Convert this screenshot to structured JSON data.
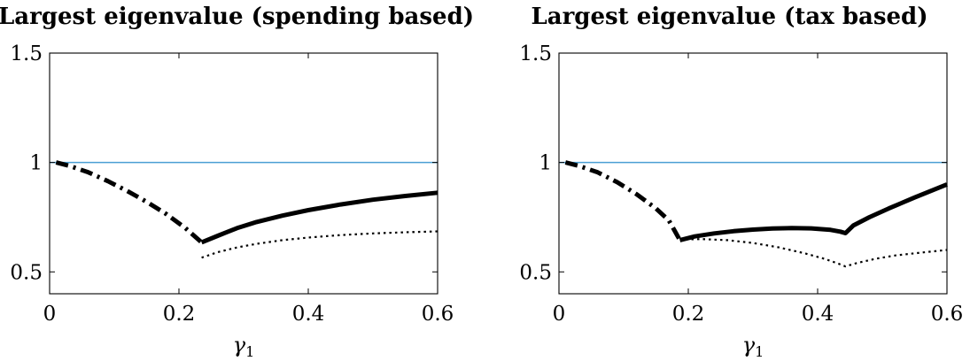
{
  "chart_data": [
    {
      "type": "line",
      "title": "Largest eigenvalue (spending based)",
      "xlabel": "γ",
      "xlabel_subscript": "1",
      "ylabel": "",
      "xlim": [
        0,
        0.6
      ],
      "ylim": [
        0.4,
        1.5
      ],
      "xticks": [
        0,
        0.2,
        0.4,
        0.6
      ],
      "xtick_labels": [
        "0",
        "0.2",
        "0.4",
        "0.6"
      ],
      "yticks": [
        0.5,
        1,
        1.5
      ],
      "ytick_labels": [
        "0.5",
        "1",
        "1.5"
      ],
      "grid": false,
      "reference_line": {
        "y": 1,
        "color": "#4a9fd4"
      },
      "series": [
        {
          "style": "dash-dot",
          "color": "#000000",
          "x": [
            0.01,
            0.03,
            0.06,
            0.09,
            0.12,
            0.15,
            0.18,
            0.21,
            0.235
          ],
          "y": [
            1.0,
            0.985,
            0.955,
            0.915,
            0.87,
            0.82,
            0.765,
            0.7,
            0.635
          ]
        },
        {
          "style": "solid",
          "color": "#000000",
          "x": [
            0.235,
            0.26,
            0.29,
            0.32,
            0.36,
            0.4,
            0.45,
            0.5,
            0.55,
            0.6
          ],
          "y": [
            0.635,
            0.665,
            0.7,
            0.728,
            0.757,
            0.782,
            0.808,
            0.83,
            0.847,
            0.862
          ]
        },
        {
          "style": "dotted",
          "color": "#000000",
          "x": [
            0.235,
            0.26,
            0.29,
            0.32,
            0.36,
            0.4,
            0.45,
            0.5,
            0.55,
            0.6
          ],
          "y": [
            0.565,
            0.59,
            0.612,
            0.628,
            0.645,
            0.657,
            0.668,
            0.676,
            0.681,
            0.685
          ]
        }
      ]
    },
    {
      "type": "line",
      "title": "Largest eigenvalue (tax based)",
      "xlabel": "γ",
      "xlabel_subscript": "1",
      "ylabel": "",
      "xlim": [
        0,
        0.6
      ],
      "ylim": [
        0.4,
        1.5
      ],
      "xticks": [
        0,
        0.2,
        0.4,
        0.6
      ],
      "xtick_labels": [
        "0",
        "0.2",
        "0.4",
        "0.6"
      ],
      "yticks": [
        0.5,
        1,
        1.5
      ],
      "ytick_labels": [
        "0.5",
        "1",
        "1.5"
      ],
      "grid": false,
      "reference_line": {
        "y": 1,
        "color": "#4a9fd4"
      },
      "series": [
        {
          "style": "dash-dot",
          "color": "#000000",
          "x": [
            0.01,
            0.03,
            0.06,
            0.09,
            0.12,
            0.15,
            0.17,
            0.187
          ],
          "y": [
            1.0,
            0.985,
            0.955,
            0.91,
            0.855,
            0.79,
            0.735,
            0.645
          ]
        },
        {
          "style": "solid",
          "color": "#000000",
          "x": [
            0.187,
            0.21,
            0.24,
            0.27,
            0.3,
            0.33,
            0.36,
            0.39,
            0.42,
            0.435,
            0.443,
            0.455,
            0.48,
            0.51,
            0.55,
            0.6
          ],
          "y": [
            0.645,
            0.662,
            0.676,
            0.686,
            0.693,
            0.698,
            0.7,
            0.699,
            0.692,
            0.684,
            0.677,
            0.712,
            0.75,
            0.79,
            0.84,
            0.9
          ]
        },
        {
          "style": "dotted",
          "color": "#000000",
          "x": [
            0.187,
            0.22,
            0.26,
            0.3,
            0.34,
            0.38,
            0.41,
            0.43,
            0.443,
            0.46,
            0.49,
            0.52,
            0.56,
            0.6
          ],
          "y": [
            0.648,
            0.65,
            0.645,
            0.632,
            0.612,
            0.585,
            0.56,
            0.54,
            0.525,
            0.54,
            0.56,
            0.575,
            0.588,
            0.6
          ]
        }
      ]
    }
  ]
}
